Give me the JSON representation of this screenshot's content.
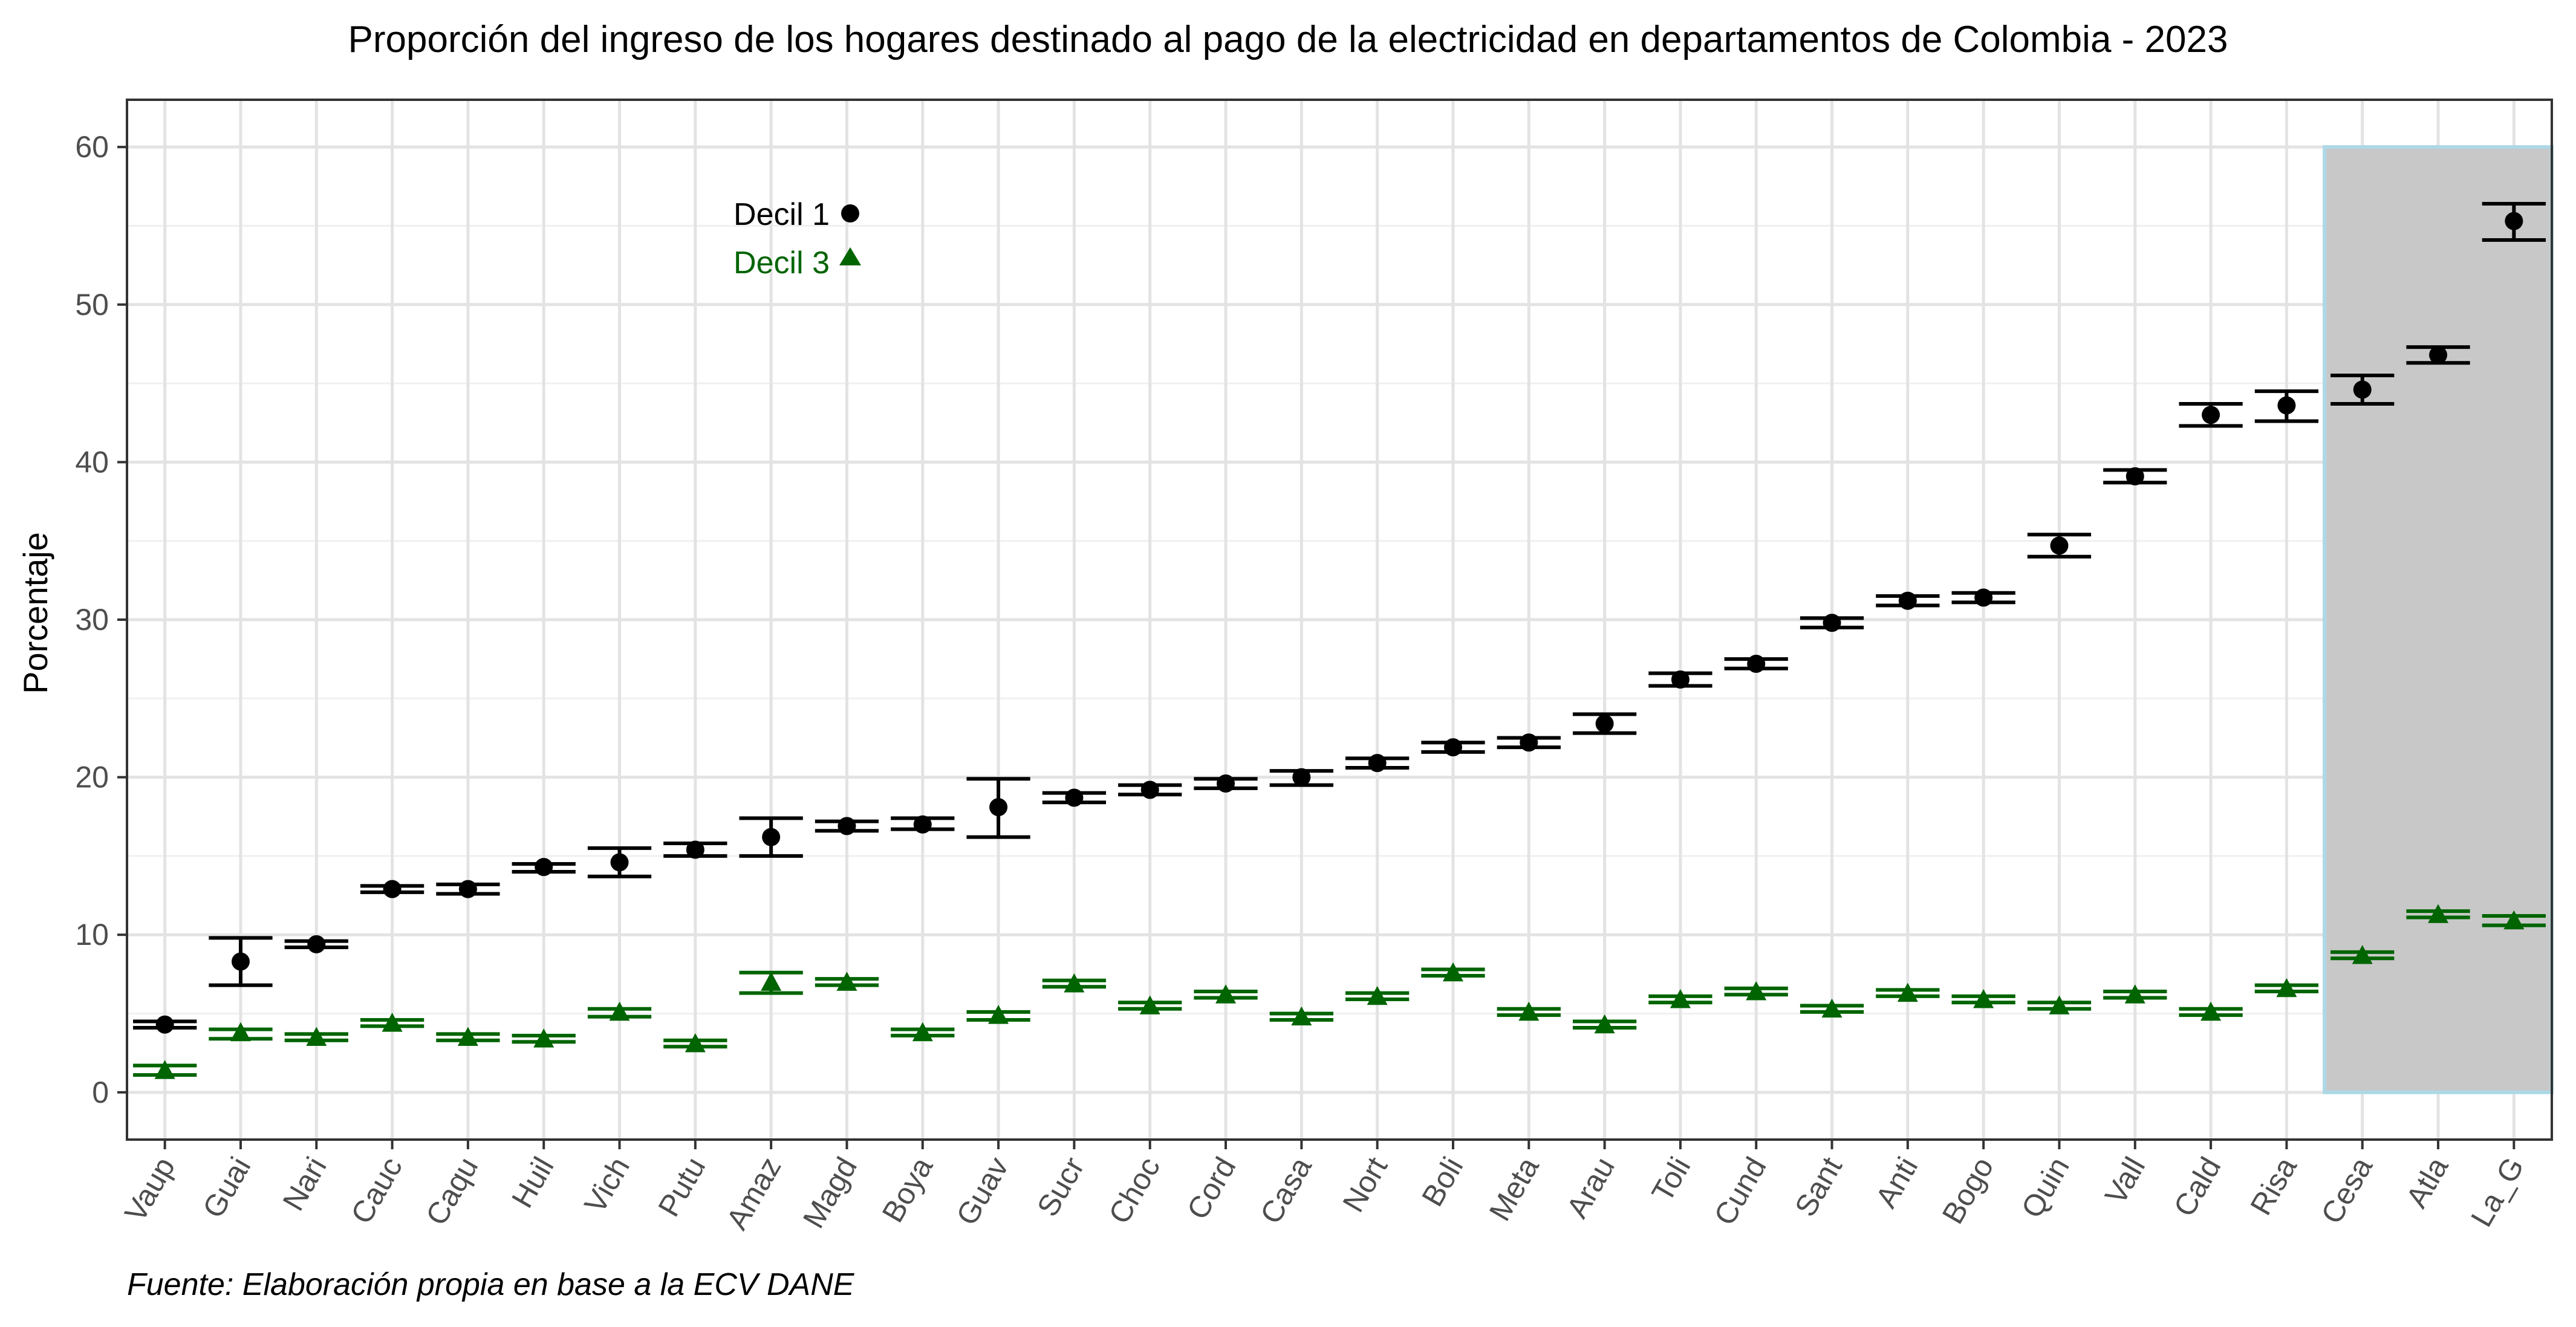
{
  "chart_data": {
    "type": "scatter",
    "title": "Proporción del ingreso de los hogares destinado al pago de la electricidad en departamentos de Colombia - 2023",
    "ylabel": "Porcentaje",
    "xlabel": "",
    "caption": "Fuente: Elaboración propia en base a la ECV DANE",
    "ylim": [
      -3,
      63
    ],
    "yticks": [
      0,
      10,
      20,
      30,
      40,
      50,
      60
    ],
    "grid": true,
    "legend_position": "top-left",
    "categories": [
      "Vaup",
      "Guai",
      "Nari",
      "Cauc",
      "Caqu",
      "Huil",
      "Vich",
      "Putu",
      "Amaz",
      "Magd",
      "Boya",
      "Guav",
      "Sucr",
      "Choc",
      "Cord",
      "Casa",
      "Nort",
      "Boli",
      "Meta",
      "Arau",
      "Toli",
      "Cund",
      "Sant",
      "Anti",
      "Bogo",
      "Quin",
      "Vall",
      "Cald",
      "Risa",
      "Cesa",
      "Atla",
      "La_G"
    ],
    "highlight": {
      "from": "Cesa",
      "to": "La_G",
      "y_range": [
        0,
        60
      ],
      "fill": "#c8c8c8",
      "stroke": "#add8e6"
    },
    "series": [
      {
        "name": "Decil 1",
        "marker": "circle",
        "color": "#000000",
        "values": [
          4.3,
          8.3,
          9.4,
          12.9,
          12.9,
          14.3,
          14.6,
          15.4,
          16.2,
          16.9,
          17.0,
          18.1,
          18.7,
          19.2,
          19.6,
          20.0,
          20.9,
          21.9,
          22.2,
          23.4,
          26.2,
          27.2,
          29.8,
          31.2,
          31.4,
          34.7,
          39.1,
          43.0,
          43.6,
          44.6,
          46.8,
          55.3
        ],
        "lower": [
          4.1,
          6.8,
          9.2,
          12.7,
          12.6,
          14.0,
          13.7,
          15.0,
          15.0,
          16.6,
          16.7,
          16.2,
          18.4,
          18.9,
          19.3,
          19.5,
          20.6,
          21.6,
          21.9,
          22.8,
          25.8,
          26.9,
          29.5,
          30.9,
          31.1,
          34.0,
          38.7,
          42.3,
          42.6,
          43.7,
          46.3,
          54.1
        ],
        "upper": [
          4.5,
          9.8,
          9.6,
          13.1,
          13.2,
          14.5,
          15.5,
          15.8,
          17.4,
          17.2,
          17.4,
          19.9,
          19.0,
          19.5,
          19.9,
          20.4,
          21.2,
          22.2,
          22.5,
          24.0,
          26.6,
          27.5,
          30.1,
          31.5,
          31.7,
          35.4,
          39.5,
          43.7,
          44.5,
          45.5,
          47.3,
          56.4
        ]
      },
      {
        "name": "Decil 3",
        "marker": "triangle",
        "color": "#006400",
        "values": [
          1.4,
          3.8,
          3.5,
          4.4,
          3.5,
          3.4,
          5.1,
          3.1,
          7.0,
          7.0,
          3.8,
          4.9,
          6.9,
          5.5,
          6.2,
          4.8,
          6.1,
          7.6,
          5.1,
          4.3,
          5.9,
          6.4,
          5.3,
          6.3,
          5.9,
          5.5,
          6.2,
          5.1,
          6.6,
          8.7,
          11.3,
          10.9
        ],
        "lower": [
          1.1,
          3.4,
          3.3,
          4.2,
          3.3,
          3.2,
          4.8,
          2.9,
          6.3,
          6.8,
          3.6,
          4.6,
          6.7,
          5.3,
          6.0,
          4.6,
          5.9,
          7.4,
          4.9,
          4.1,
          5.7,
          6.2,
          5.1,
          6.1,
          5.7,
          5.3,
          6.0,
          4.9,
          6.4,
          8.5,
          11.1,
          10.6
        ],
        "upper": [
          1.7,
          4.0,
          3.7,
          4.6,
          3.7,
          3.6,
          5.3,
          3.3,
          7.6,
          7.2,
          4.0,
          5.1,
          7.1,
          5.7,
          6.4,
          5.0,
          6.3,
          7.8,
          5.3,
          4.5,
          6.1,
          6.6,
          5.5,
          6.5,
          6.1,
          5.7,
          6.4,
          5.3,
          6.8,
          8.9,
          11.5,
          11.2
        ]
      }
    ]
  }
}
